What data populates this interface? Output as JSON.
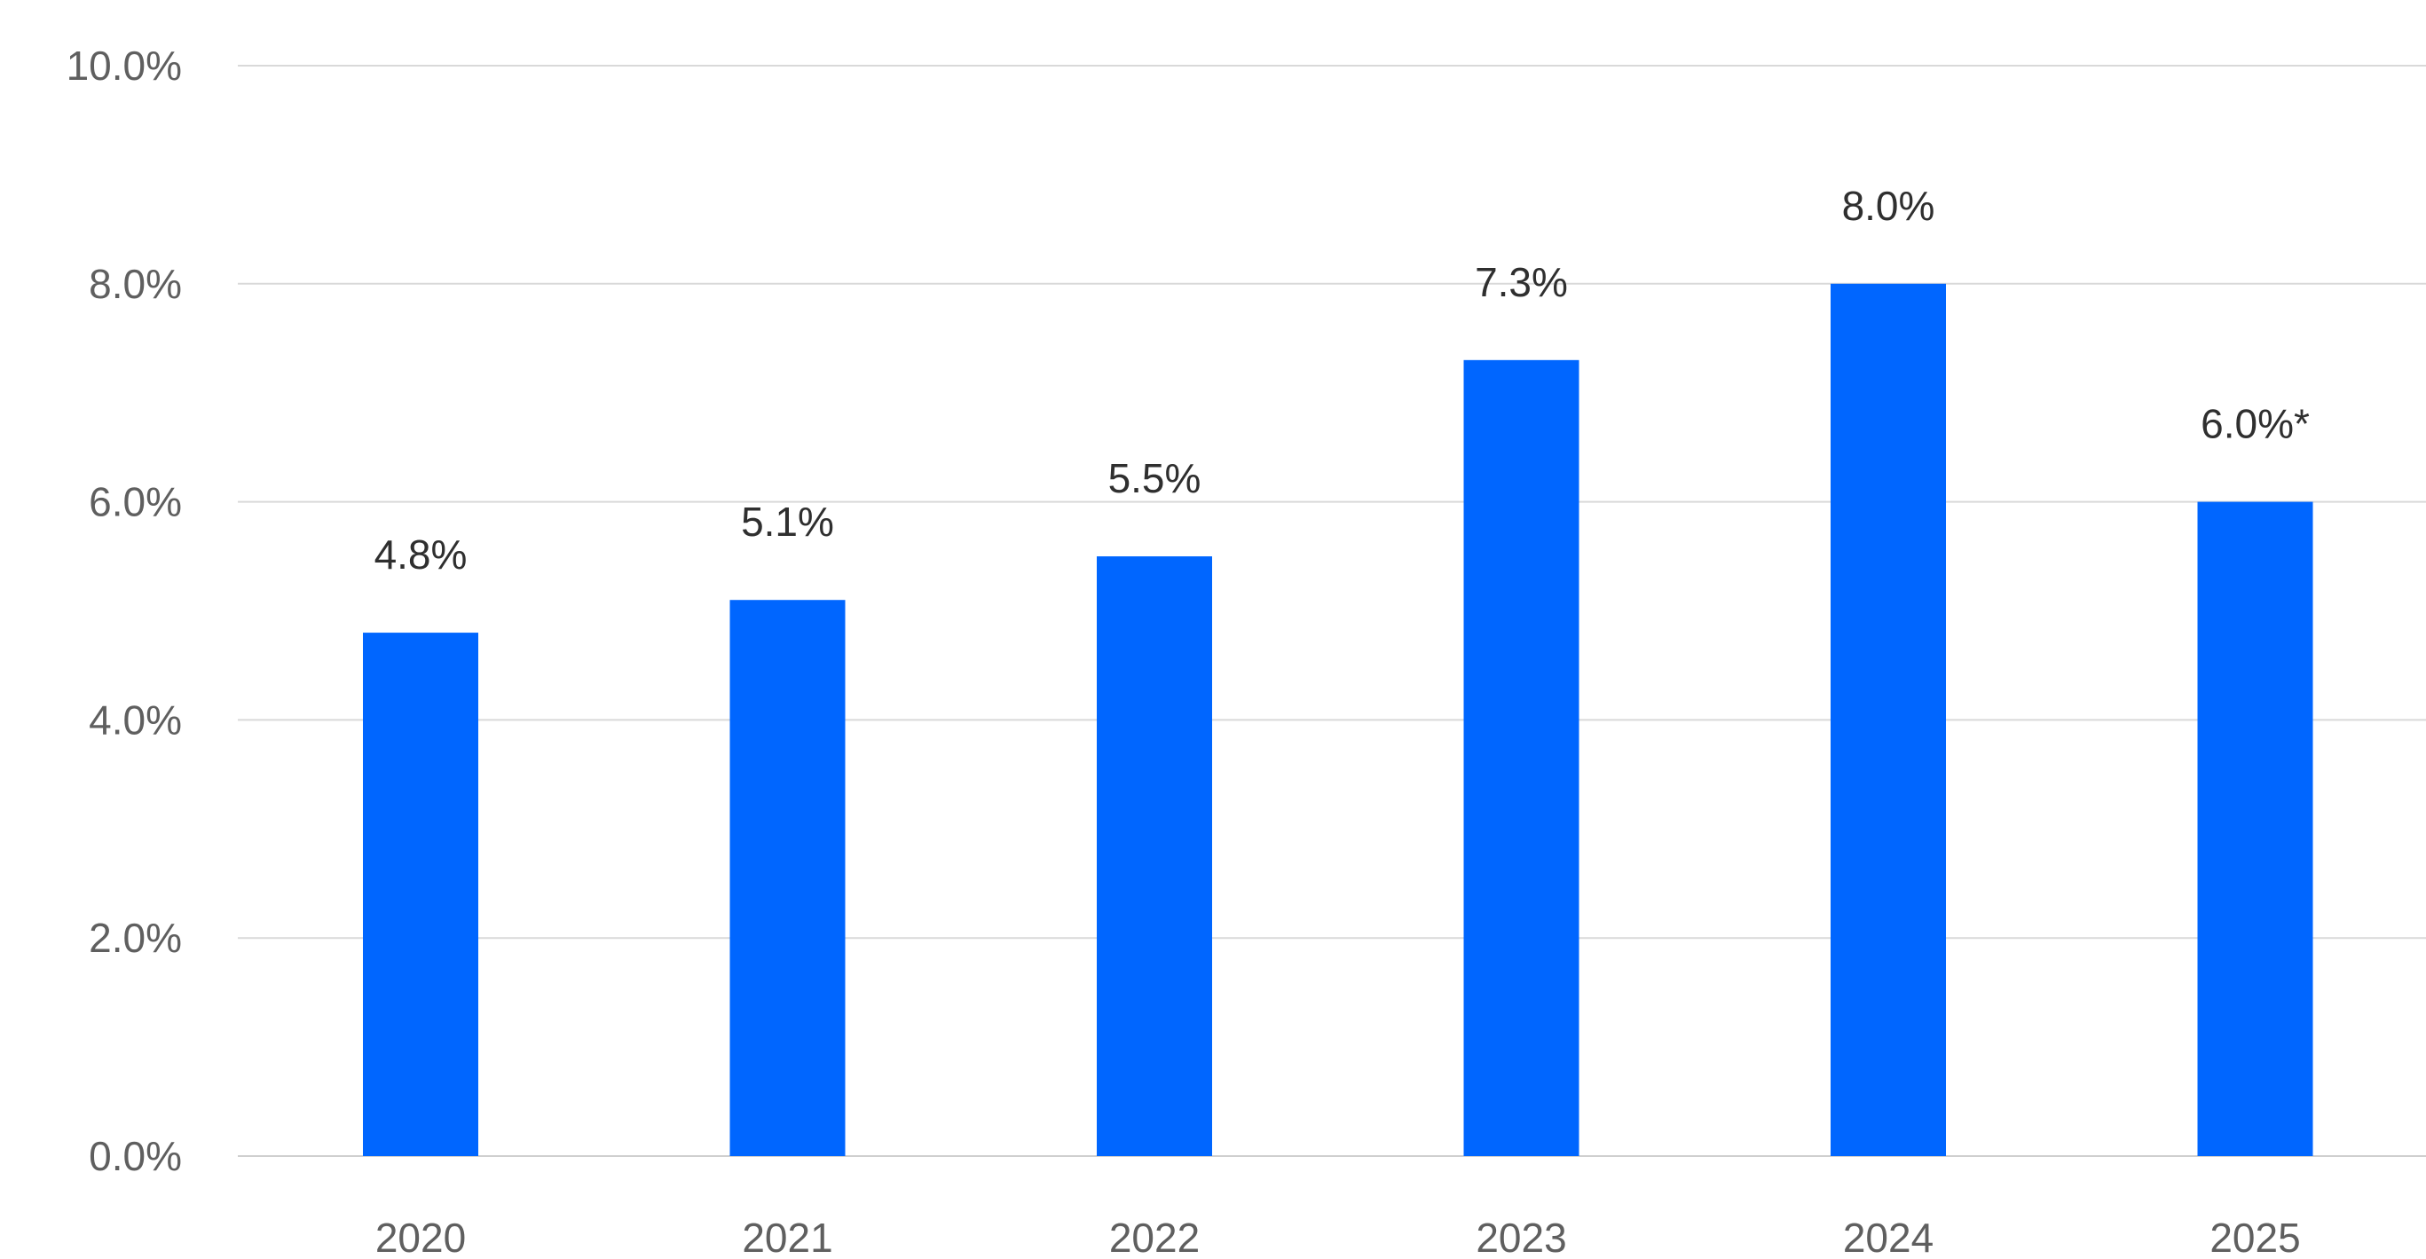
{
  "chart_data": {
    "type": "bar",
    "categories": [
      "2020",
      "2021",
      "2022",
      "2023",
      "2024",
      "2025"
    ],
    "values": [
      4.8,
      5.1,
      5.5,
      7.3,
      8.0,
      6.0
    ],
    "data_labels": [
      "4.8%",
      "5.1%",
      "5.5%",
      "7.3%",
      "8.0%",
      "6.0%*"
    ],
    "ylim": [
      0,
      10
    ],
    "y_ticks": [
      "0.0%",
      "2.0%",
      "4.0%",
      "6.0%",
      "8.0%",
      "10.0%"
    ],
    "y_tick_values": [
      0,
      2,
      4,
      6,
      8,
      10
    ],
    "grid": true,
    "legend": "none",
    "colors": {
      "bar": "#0066ff",
      "grid": "#d9d9d9"
    }
  }
}
